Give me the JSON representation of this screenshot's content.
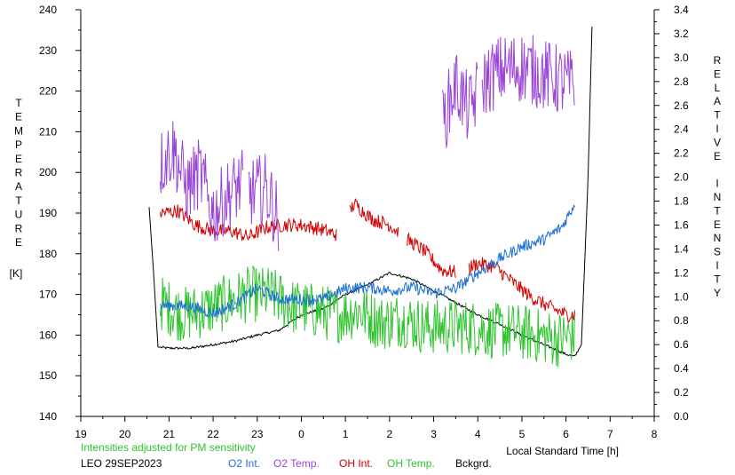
{
  "chart_data": {
    "type": "line",
    "xlabel": "Local Standard Time [h]",
    "xlim": [
      19,
      32
    ],
    "x_tick_labels": [
      "19",
      "20",
      "21",
      "22",
      "23",
      "0",
      "1",
      "2",
      "3",
      "4",
      "5",
      "6",
      "7",
      "8"
    ],
    "left_axis": {
      "label": "TEMPERATURE",
      "unit": "[K]",
      "ylim": [
        140,
        240
      ],
      "tick_labels": [
        "140",
        "150",
        "160",
        "170",
        "180",
        "190",
        "200",
        "210",
        "220",
        "230",
        "240"
      ]
    },
    "right_axis": {
      "label": "RELATIVE INTENSITY",
      "ylim": [
        0.0,
        3.4
      ],
      "tick_labels": [
        "0.0",
        "0.2",
        "0.4",
        "0.6",
        "0.8",
        "1.0",
        "1.2",
        "1.4",
        "1.6",
        "1.8",
        "2.0",
        "2.2",
        "2.4",
        "2.6",
        "2.8",
        "3.0",
        "3.2",
        "3.4"
      ]
    },
    "note": "Intensities adjusted for PM sensitivity",
    "station": "LEO 29SEP2023",
    "legend": [
      {
        "name": "O2 Int.",
        "color": "#1c6fd6"
      },
      {
        "name": "O2 Temp.",
        "color": "#9a45d6"
      },
      {
        "name": "OH Int.",
        "color": "#d40000"
      },
      {
        "name": "OH Temp.",
        "color": "#2ec42e"
      },
      {
        "name": "Bckgrd.",
        "color": "#000000"
      }
    ],
    "grid": false,
    "series": [
      {
        "name": "O2 Int.",
        "axis": "right",
        "color": "#1c6fd6",
        "x": [
          20.8,
          21.5,
          22.0,
          22.5,
          23.0,
          23.5,
          24.0,
          24.5,
          25.0,
          25.5,
          26.0,
          26.5,
          27.0,
          27.5,
          28.0,
          28.5,
          29.0,
          29.5,
          29.9,
          30.2
        ],
        "y": [
          0.93,
          0.92,
          0.86,
          0.94,
          1.07,
          0.98,
          0.98,
          0.98,
          1.07,
          1.08,
          1.05,
          1.08,
          1.03,
          1.07,
          1.2,
          1.32,
          1.42,
          1.48,
          1.58,
          1.78
        ]
      },
      {
        "name": "O2 Temp.",
        "axis": "left",
        "color": "#9a45d6",
        "x_segments": [
          [
            20.8,
            22.7
          ],
          [
            22.8,
            23.5
          ],
          [
            27.2,
            28.0
          ],
          [
            28.1,
            30.2
          ]
        ],
        "x": [
          20.8,
          21.1,
          21.4,
          21.7,
          22.0,
          22.3,
          22.6,
          22.9,
          23.2,
          23.5,
          27.2,
          27.5,
          27.8,
          28.1,
          28.5,
          29.0,
          29.5,
          30.0,
          30.2
        ],
        "y": [
          202,
          206,
          196,
          200,
          190,
          194,
          197,
          195,
          196,
          188,
          212,
          222,
          215,
          222,
          225,
          226,
          224,
          222,
          221
        ]
      },
      {
        "name": "OH Int.",
        "axis": "right",
        "color": "#d40000",
        "x_segments": [
          [
            20.8,
            24.8
          ],
          [
            25.1,
            26.2
          ],
          [
            26.4,
            27.5
          ],
          [
            27.8,
            30.2
          ]
        ],
        "x": [
          20.8,
          21.2,
          21.6,
          22.0,
          22.4,
          22.8,
          23.2,
          23.6,
          24.0,
          24.4,
          24.8,
          25.2,
          25.6,
          26.0,
          26.4,
          26.8,
          27.2,
          27.6,
          28.0,
          28.4,
          28.8,
          29.2,
          29.6,
          30.0,
          30.2
        ],
        "y": [
          1.7,
          1.72,
          1.6,
          1.55,
          1.55,
          1.5,
          1.58,
          1.6,
          1.6,
          1.57,
          1.52,
          1.78,
          1.65,
          1.6,
          1.48,
          1.38,
          1.22,
          1.2,
          1.28,
          1.25,
          1.12,
          1.0,
          0.92,
          0.85,
          0.85
        ]
      },
      {
        "name": "OH Temp.",
        "axis": "left",
        "color": "#2ec42e",
        "x": [
          20.8,
          21.3,
          21.8,
          22.3,
          22.8,
          23.3,
          23.8,
          24.3,
          24.8,
          25.3,
          25.8,
          26.3,
          26.8,
          27.3,
          27.8,
          28.3,
          28.8,
          29.3,
          29.8,
          30.2
        ],
        "y": [
          168,
          165,
          166,
          168,
          170,
          170,
          167,
          166,
          165,
          166,
          163,
          164,
          162,
          162,
          162,
          161,
          161,
          160,
          159,
          160
        ]
      },
      {
        "name": "Bckgrd.",
        "axis": "right",
        "color": "#000000",
        "x": [
          20.55,
          20.65,
          20.75,
          21.0,
          21.5,
          22.0,
          22.5,
          23.0,
          23.5,
          24.0,
          24.5,
          25.0,
          25.5,
          26.0,
          26.5,
          27.0,
          27.5,
          28.0,
          28.5,
          29.0,
          29.5,
          30.0,
          30.2,
          30.35,
          30.5,
          30.6
        ],
        "y": [
          1.75,
          1.2,
          0.58,
          0.57,
          0.57,
          0.6,
          0.63,
          0.68,
          0.72,
          0.85,
          0.9,
          1.02,
          1.1,
          1.2,
          1.15,
          1.05,
          0.95,
          0.85,
          0.77,
          0.68,
          0.6,
          0.52,
          0.5,
          0.6,
          2.0,
          3.4
        ]
      }
    ]
  }
}
